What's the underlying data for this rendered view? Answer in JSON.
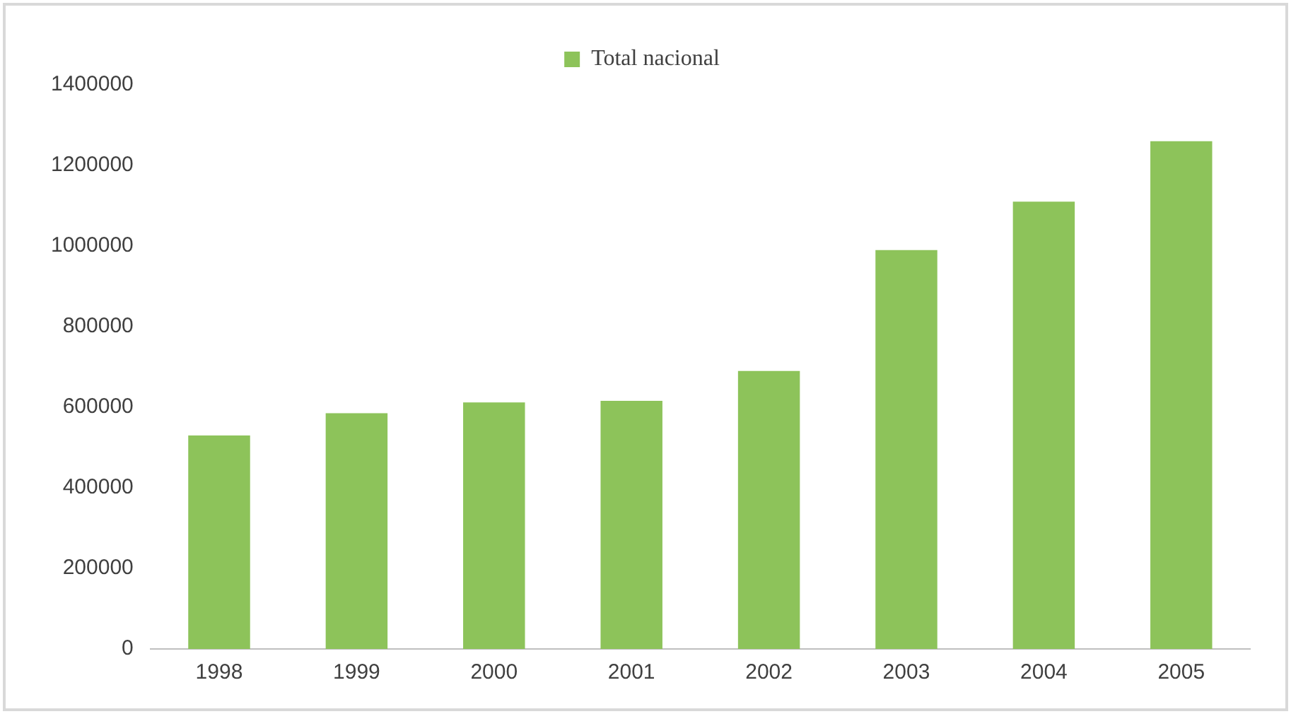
{
  "chart_data": {
    "type": "bar",
    "categories": [
      "1998",
      "1999",
      "2000",
      "2001",
      "2002",
      "2003",
      "2004",
      "2005"
    ],
    "series": [
      {
        "name": "Total nacional",
        "color": "#8dc35a",
        "values": [
          530000,
          585000,
          612000,
          616000,
          690000,
          990000,
          1110000,
          1260000
        ]
      }
    ],
    "ylim": [
      0,
      1400000
    ],
    "yticks": [
      0,
      200000,
      400000,
      600000,
      800000,
      1000000,
      1200000,
      1400000
    ],
    "grid": false,
    "legend": "top"
  }
}
